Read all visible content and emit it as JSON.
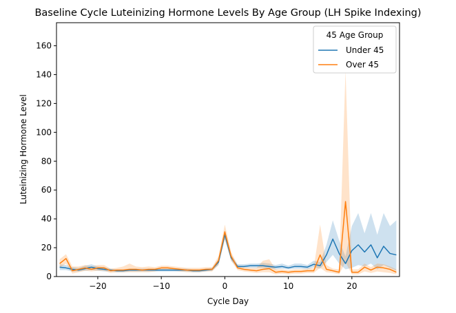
{
  "chart_data": {
    "type": "line",
    "title": "Baseline Cycle Luteinizing Hormone Levels By Age Group (LH Spike Indexing)",
    "xlabel": "Cycle Day",
    "ylabel": "Luteinizing Hormone Level",
    "xlim": [
      -26.5,
      27.5
    ],
    "ylim": [
      0,
      176
    ],
    "xticks": [
      -20,
      -10,
      0,
      10,
      20
    ],
    "yticks": [
      0,
      20,
      40,
      60,
      80,
      100,
      120,
      140,
      160
    ],
    "grid": false,
    "legend": {
      "title": "45 Age Group",
      "placement": "top-right"
    },
    "x": [
      -26,
      -25,
      -24,
      -23,
      -22,
      -21,
      -20,
      -19,
      -18,
      -17,
      -16,
      -15,
      -14,
      -13,
      -12,
      -11,
      -10,
      -9,
      -8,
      -7,
      -6,
      -5,
      -4,
      -3,
      -2,
      -1,
      0,
      1,
      2,
      3,
      4,
      5,
      6,
      7,
      8,
      9,
      10,
      11,
      12,
      13,
      14,
      15,
      16,
      17,
      18,
      19,
      20,
      21,
      22,
      23,
      24,
      25,
      26,
      27
    ],
    "series": [
      {
        "name": "Under 45",
        "color": "#1f77b4",
        "values": [
          6.5,
          6,
          5,
          4.5,
          5.5,
          6.5,
          5.5,
          5,
          4.5,
          4,
          4,
          4.5,
          4.5,
          4.5,
          4.5,
          4.5,
          4.5,
          4.5,
          4.5,
          4.5,
          4.5,
          4,
          4,
          4.5,
          5,
          10,
          29,
          13,
          7,
          7,
          7.5,
          7.5,
          7.5,
          7,
          6.5,
          7,
          6,
          7,
          7,
          6.5,
          8.5,
          7.5,
          15,
          26,
          16,
          9,
          18,
          22,
          17,
          22,
          13,
          21,
          16,
          15
        ],
        "ci_low": [
          4.5,
          4.5,
          3.5,
          3.5,
          4,
          4.5,
          4,
          3.5,
          3.5,
          3,
          3,
          3.5,
          3.5,
          3.5,
          3.5,
          3.5,
          3.5,
          3.5,
          3.5,
          3.5,
          3.5,
          3,
          3,
          3.5,
          4,
          8,
          26,
          11,
          6,
          6,
          6,
          6,
          6,
          5.5,
          5,
          5.5,
          5,
          5.5,
          5.5,
          5,
          6.5,
          5.5,
          10,
          15,
          9,
          5,
          6,
          8,
          7,
          9,
          5,
          8,
          6,
          4
        ],
        "ci_high": [
          8.5,
          8,
          6.5,
          6,
          7.5,
          8.5,
          7,
          6.5,
          5.5,
          5,
          5,
          5.5,
          5.5,
          5.5,
          5.5,
          5.5,
          5.5,
          5.5,
          5.5,
          5.5,
          5.5,
          5,
          5,
          5.5,
          6,
          12,
          32,
          15,
          8.5,
          8.5,
          9,
          9,
          9.5,
          9,
          8,
          9,
          7.5,
          9,
          9,
          8,
          11,
          10,
          22,
          39,
          25,
          14,
          35,
          44,
          30,
          44,
          29,
          44,
          35,
          39
        ]
      },
      {
        "name": "Over 45",
        "color": "#ff7f0e",
        "values": [
          9,
          12.5,
          4,
          5,
          6,
          5,
          6,
          6,
          4,
          4.5,
          4.5,
          5,
          5,
          4.5,
          5,
          5,
          6,
          6,
          5.5,
          5,
          4.5,
          4.5,
          4.5,
          5,
          5,
          11,
          31,
          14,
          6,
          5,
          4.5,
          4,
          5,
          5.5,
          3,
          3.5,
          3,
          3.5,
          3.5,
          4,
          4,
          15,
          5,
          4,
          3,
          52,
          3,
          3,
          6.5,
          4.5,
          6.5,
          6,
          5,
          3
        ],
        "ci_low": [
          6,
          9,
          2,
          3,
          4,
          3.5,
          4,
          4,
          2.5,
          3,
          3,
          3,
          3,
          3,
          3,
          3.5,
          4.5,
          4.5,
          4,
          3.5,
          3,
          3,
          3,
          3.5,
          3.5,
          8,
          26,
          11,
          4.5,
          3.5,
          3,
          2.5,
          3,
          3,
          1.5,
          2,
          1.5,
          2,
          2,
          2.5,
          2.5,
          6,
          3,
          2.5,
          1.5,
          10,
          1.5,
          1.5,
          3.5,
          2.5,
          3.5,
          3,
          2.5,
          1.5
        ],
        "ci_high": [
          12,
          15.5,
          7,
          7,
          8,
          7,
          8,
          8,
          5.5,
          6,
          7,
          9,
          7,
          6.5,
          7,
          6.5,
          7.5,
          7.5,
          7,
          6.5,
          6,
          6,
          6,
          6.5,
          6.5,
          14,
          36,
          17,
          8,
          6.5,
          6,
          6,
          11,
          12,
          5,
          5,
          4.5,
          5,
          5,
          5.5,
          6,
          36,
          8,
          5.5,
          5,
          143,
          5,
          5,
          9,
          6.5,
          9,
          8.5,
          7,
          5
        ]
      }
    ]
  }
}
